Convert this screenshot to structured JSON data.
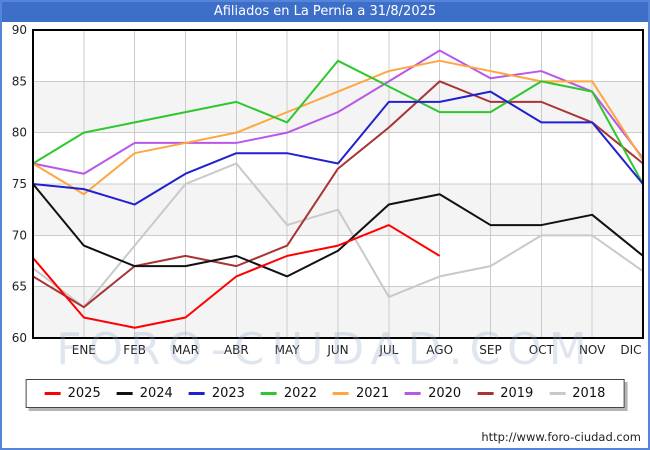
{
  "title": "Afiliados en La Pernía a 31/8/2025",
  "watermark": "FORO-CIUDAD.COM",
  "footer_url": "http://www.foro-ciudad.com",
  "colors": {
    "frame_border": "#5585d8",
    "title_bg": "#3d6fc9",
    "title_text": "#ffffff",
    "plot_border": "#000000",
    "gridline": "#cccccc",
    "band_fill": "#f4f4f4",
    "axis_text": "#222222",
    "watermark_text": "#93a7c9"
  },
  "chart_data": {
    "type": "line",
    "title": "Afiliados en La Pernía a 31/8/2025",
    "xlabel": "",
    "ylabel": "",
    "categories": [
      "ENE",
      "FEB",
      "MAR",
      "ABR",
      "MAY",
      "JUN",
      "JUL",
      "AGO",
      "SEP",
      "OCT",
      "NOV",
      "DIC"
    ],
    "y_ticks": [
      60,
      65,
      70,
      75,
      80,
      85,
      90
    ],
    "ylim": [
      60,
      90
    ],
    "grid": true,
    "legend_position": "bottom",
    "note": "Each series starts with a lead-in value at the left plot border before ENE. 2025 has data only through AGO (31/8/2025).",
    "series": [
      {
        "name": "2025",
        "color": "#ff0000",
        "values": [
          67.8,
          62,
          61,
          62,
          66,
          68,
          69,
          71,
          68
        ]
      },
      {
        "name": "2024",
        "color": "#111111",
        "values": [
          75,
          69,
          67,
          67,
          68,
          66,
          68.5,
          73,
          74,
          71,
          71,
          72,
          68
        ]
      },
      {
        "name": "2023",
        "color": "#2121cf",
        "values": [
          75,
          74.5,
          73,
          76,
          78,
          78,
          77,
          83,
          83,
          84,
          81,
          81,
          75
        ]
      },
      {
        "name": "2022",
        "color": "#2ec82e",
        "values": [
          77,
          80,
          81,
          82,
          83,
          81,
          87,
          84.5,
          82,
          82,
          85,
          84,
          75
        ]
      },
      {
        "name": "2021",
        "color": "#ffa640",
        "values": [
          77,
          74,
          78,
          79,
          80,
          82,
          84,
          86,
          87,
          86,
          85,
          85,
          77.3
        ]
      },
      {
        "name": "2020",
        "color": "#b957e8",
        "values": [
          77,
          76,
          79,
          79,
          79,
          80,
          82,
          85,
          88,
          85.3,
          86,
          84,
          77.5
        ]
      },
      {
        "name": "2019",
        "color": "#a93434",
        "values": [
          66,
          63,
          67,
          68,
          67,
          69,
          76.5,
          80.5,
          85,
          83,
          83,
          81,
          77
        ]
      },
      {
        "name": "2018",
        "color": "#c9c9c9",
        "values": [
          66.8,
          63,
          69,
          75,
          77,
          71,
          72.5,
          64,
          66,
          67,
          70,
          70,
          66.5
        ]
      }
    ]
  }
}
